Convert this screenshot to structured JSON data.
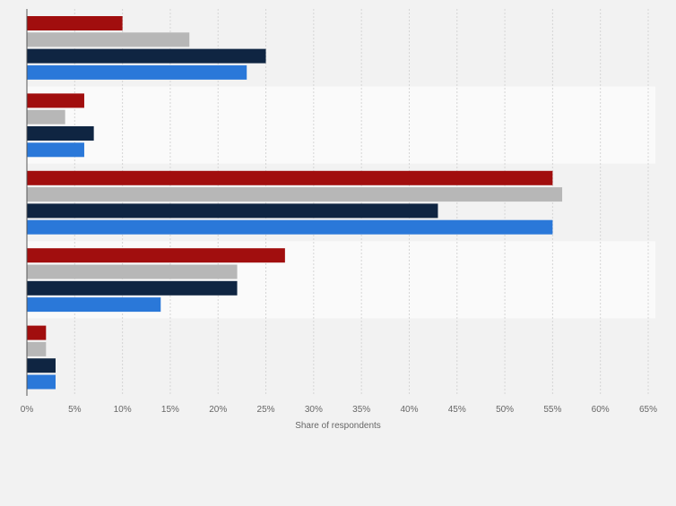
{
  "chart_data": {
    "type": "bar",
    "orientation": "horizontal",
    "categories": [
      "",
      "",
      "",
      "",
      ""
    ],
    "series": [
      {
        "color": "#a10e0e",
        "values": [
          10,
          6,
          55,
          27,
          2
        ]
      },
      {
        "color": "#b7b7b7",
        "values": [
          17,
          4,
          56,
          22,
          2
        ]
      },
      {
        "color": "#0f2542",
        "values": [
          25,
          7,
          43,
          22,
          3
        ]
      },
      {
        "color": "#2a78d9",
        "values": [
          23,
          6,
          55,
          14,
          3
        ]
      }
    ],
    "xlim": [
      0,
      65
    ],
    "xticks": [
      "0%",
      "5%",
      "10%",
      "15%",
      "20%",
      "25%",
      "30%",
      "35%",
      "40%",
      "45%",
      "50%",
      "55%",
      "60%",
      "65%"
    ],
    "xlabel": "Share of respondents",
    "ylabel": "",
    "title": "",
    "grid": true,
    "legend": "none",
    "band_colors": [
      "#f2f2f2",
      "#fafafa"
    ]
  }
}
